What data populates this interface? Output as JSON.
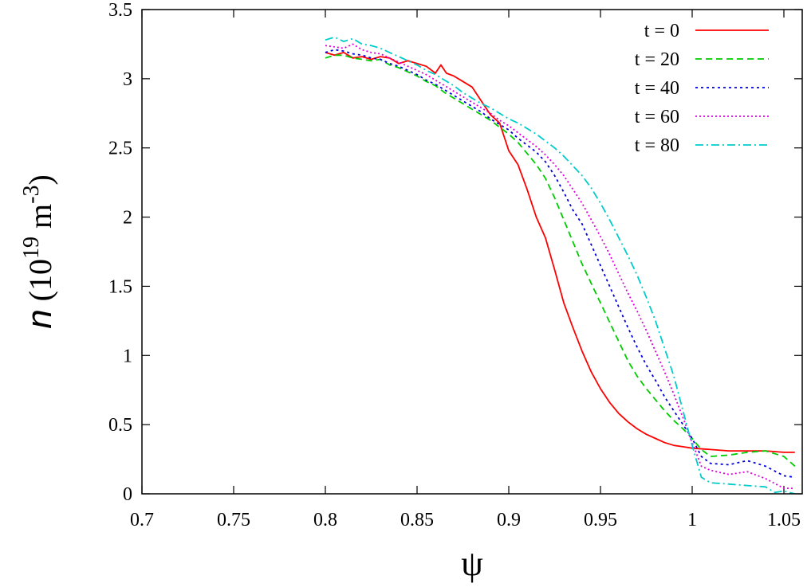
{
  "chart_data": {
    "type": "line",
    "xlabel": "ψ",
    "ylabel": {
      "var": "n",
      "open": " (10",
      "exp1": "19",
      "mid": " m",
      "exp2": "-3",
      "close": ")"
    },
    "xlim": [
      0.7,
      1.06
    ],
    "ylim": [
      0,
      3.5
    ],
    "xticks": [
      "0.7",
      "0.75",
      "0.8",
      "0.85",
      "0.9",
      "0.95",
      "1",
      "1.05"
    ],
    "yticks": [
      "0",
      "0.5",
      "1",
      "1.5",
      "2",
      "2.5",
      "3",
      "3.5"
    ],
    "grid": false,
    "legend_position": "top-right",
    "series": [
      {
        "name": "t = 0",
        "color": "#ff0000",
        "dash": "solid",
        "x": [
          0.8,
          0.805,
          0.81,
          0.815,
          0.82,
          0.825,
          0.83,
          0.835,
          0.84,
          0.845,
          0.85,
          0.855,
          0.86,
          0.863,
          0.866,
          0.87,
          0.875,
          0.88,
          0.885,
          0.89,
          0.895,
          0.9,
          0.905,
          0.91,
          0.915,
          0.92,
          0.925,
          0.93,
          0.935,
          0.94,
          0.945,
          0.95,
          0.955,
          0.96,
          0.965,
          0.97,
          0.975,
          0.98,
          0.985,
          0.99,
          0.995,
          1.0,
          1.01,
          1.02,
          1.03,
          1.04,
          1.05,
          1.056
        ],
        "y": [
          3.19,
          3.17,
          3.19,
          3.15,
          3.16,
          3.14,
          3.16,
          3.15,
          3.11,
          3.13,
          3.11,
          3.09,
          3.04,
          3.1,
          3.04,
          3.02,
          2.98,
          2.94,
          2.84,
          2.74,
          2.68,
          2.48,
          2.38,
          2.2,
          2.0,
          1.85,
          1.62,
          1.38,
          1.2,
          1.03,
          0.88,
          0.76,
          0.66,
          0.58,
          0.52,
          0.47,
          0.43,
          0.4,
          0.37,
          0.35,
          0.34,
          0.33,
          0.32,
          0.31,
          0.31,
          0.31,
          0.3,
          0.3
        ]
      },
      {
        "name": "t = 20",
        "color": "#00cc00",
        "dash": "8,5",
        "x": [
          0.8,
          0.805,
          0.81,
          0.815,
          0.82,
          0.825,
          0.83,
          0.835,
          0.84,
          0.845,
          0.85,
          0.855,
          0.86,
          0.865,
          0.87,
          0.875,
          0.88,
          0.885,
          0.89,
          0.895,
          0.9,
          0.905,
          0.91,
          0.915,
          0.92,
          0.925,
          0.93,
          0.935,
          0.94,
          0.945,
          0.95,
          0.955,
          0.96,
          0.965,
          0.97,
          0.975,
          0.98,
          0.985,
          0.99,
          0.995,
          1.0,
          1.005,
          1.01,
          1.02,
          1.03,
          1.04,
          1.05,
          1.056
        ],
        "y": [
          3.15,
          3.17,
          3.17,
          3.15,
          3.14,
          3.13,
          3.14,
          3.1,
          3.08,
          3.05,
          3.02,
          2.98,
          2.95,
          2.9,
          2.86,
          2.82,
          2.78,
          2.74,
          2.7,
          2.65,
          2.6,
          2.54,
          2.46,
          2.38,
          2.28,
          2.14,
          1.98,
          1.82,
          1.66,
          1.52,
          1.38,
          1.24,
          1.1,
          0.96,
          0.85,
          0.76,
          0.68,
          0.6,
          0.53,
          0.47,
          0.4,
          0.32,
          0.27,
          0.28,
          0.3,
          0.31,
          0.27,
          0.2
        ]
      },
      {
        "name": "t = 40",
        "color": "#0000dd",
        "dash": "3,4",
        "x": [
          0.8,
          0.805,
          0.81,
          0.815,
          0.82,
          0.825,
          0.83,
          0.835,
          0.84,
          0.845,
          0.85,
          0.855,
          0.86,
          0.865,
          0.87,
          0.875,
          0.88,
          0.885,
          0.89,
          0.895,
          0.9,
          0.905,
          0.91,
          0.915,
          0.92,
          0.925,
          0.93,
          0.935,
          0.94,
          0.945,
          0.95,
          0.955,
          0.96,
          0.965,
          0.97,
          0.975,
          0.98,
          0.985,
          0.99,
          0.995,
          1.0,
          1.005,
          1.01,
          1.02,
          1.03,
          1.04,
          1.05,
          1.056
        ],
        "y": [
          3.19,
          3.21,
          3.2,
          3.18,
          3.17,
          3.15,
          3.14,
          3.11,
          3.09,
          3.06,
          3.03,
          2.99,
          2.96,
          2.92,
          2.88,
          2.84,
          2.8,
          2.76,
          2.71,
          2.67,
          2.63,
          2.57,
          2.52,
          2.47,
          2.4,
          2.3,
          2.18,
          2.05,
          1.95,
          1.8,
          1.65,
          1.5,
          1.35,
          1.2,
          1.06,
          0.93,
          0.82,
          0.7,
          0.6,
          0.5,
          0.4,
          0.27,
          0.22,
          0.21,
          0.24,
          0.2,
          0.13,
          0.12
        ]
      },
      {
        "name": "t = 60",
        "color": "#dd00dd",
        "dash": "2,3",
        "x": [
          0.8,
          0.805,
          0.81,
          0.815,
          0.82,
          0.825,
          0.83,
          0.835,
          0.84,
          0.845,
          0.85,
          0.855,
          0.86,
          0.865,
          0.87,
          0.875,
          0.88,
          0.885,
          0.89,
          0.895,
          0.9,
          0.905,
          0.91,
          0.915,
          0.92,
          0.925,
          0.93,
          0.935,
          0.94,
          0.945,
          0.95,
          0.955,
          0.96,
          0.965,
          0.97,
          0.975,
          0.98,
          0.985,
          0.99,
          0.995,
          1.0,
          1.005,
          1.01,
          1.02,
          1.03,
          1.04,
          1.05,
          1.056
        ],
        "y": [
          3.24,
          3.23,
          3.22,
          3.25,
          3.21,
          3.19,
          3.18,
          3.15,
          3.12,
          3.09,
          3.06,
          3.03,
          2.99,
          2.95,
          2.91,
          2.87,
          2.83,
          2.79,
          2.75,
          2.7,
          2.66,
          2.61,
          2.56,
          2.51,
          2.45,
          2.38,
          2.3,
          2.2,
          2.1,
          1.98,
          1.86,
          1.73,
          1.59,
          1.45,
          1.32,
          1.18,
          1.03,
          0.88,
          0.72,
          0.55,
          0.37,
          0.2,
          0.17,
          0.14,
          0.16,
          0.11,
          0.04,
          0.04
        ]
      },
      {
        "name": "t = 80",
        "color": "#00cccc",
        "dash": "10,4,2,4",
        "x": [
          0.8,
          0.805,
          0.81,
          0.815,
          0.82,
          0.825,
          0.83,
          0.835,
          0.84,
          0.845,
          0.85,
          0.855,
          0.86,
          0.865,
          0.87,
          0.875,
          0.88,
          0.885,
          0.89,
          0.895,
          0.9,
          0.905,
          0.91,
          0.915,
          0.92,
          0.925,
          0.93,
          0.935,
          0.94,
          0.945,
          0.95,
          0.955,
          0.96,
          0.965,
          0.97,
          0.975,
          0.98,
          0.985,
          0.99,
          0.995,
          1.0,
          1.005,
          1.01,
          1.02,
          1.03,
          1.04,
          1.045,
          1.05,
          1.056
        ],
        "y": [
          3.28,
          3.3,
          3.27,
          3.29,
          3.25,
          3.24,
          3.22,
          3.19,
          3.16,
          3.13,
          3.1,
          3.06,
          3.03,
          2.99,
          2.95,
          2.9,
          2.86,
          2.82,
          2.79,
          2.75,
          2.71,
          2.68,
          2.64,
          2.6,
          2.55,
          2.5,
          2.44,
          2.37,
          2.3,
          2.21,
          2.1,
          1.98,
          1.85,
          1.72,
          1.58,
          1.42,
          1.25,
          1.05,
          0.85,
          0.6,
          0.35,
          0.12,
          0.08,
          0.07,
          0.06,
          0.05,
          0.01,
          0.02,
          0.0
        ]
      }
    ]
  }
}
